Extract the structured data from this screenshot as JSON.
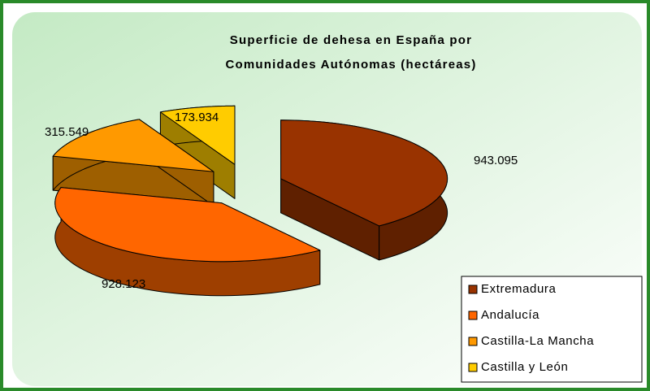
{
  "chart_data": {
    "type": "pie3d",
    "title": [
      "Superficie de dehesa en España por",
      "Comunidades Autónomas (hectáreas)"
    ],
    "categories": [
      "Extremadura",
      "Andalucía",
      "Castilla-La Mancha",
      "Castilla y León"
    ],
    "values": [
      943095,
      928123,
      315549,
      173934
    ],
    "value_labels": [
      "943.095",
      "928.123",
      "315.549",
      "173.934"
    ],
    "colors": [
      "#993300",
      "#ff6600",
      "#ff9900",
      "#ffcc00"
    ],
    "legend": "lower right"
  }
}
